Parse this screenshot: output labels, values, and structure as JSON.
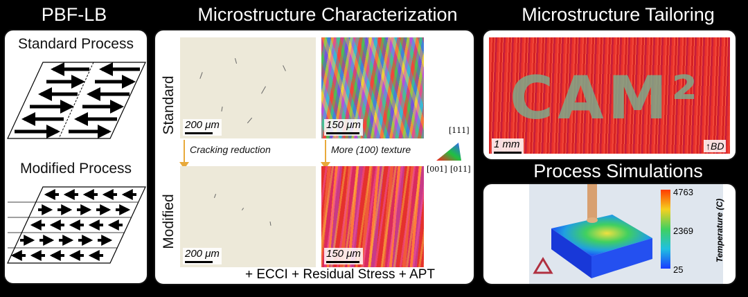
{
  "titles": {
    "pbf": "PBF-LB",
    "micro": "Microstructure Characterization",
    "tailoring": "Microstructure Tailoring",
    "simulations": "Process Simulations"
  },
  "pbf_panel": {
    "standard_label": "Standard Process",
    "modified_label": "Modified Process"
  },
  "micro_panel": {
    "row_standard": "Standard",
    "row_modified": "Modified",
    "scale_opt_std": "200 μm",
    "scale_ebsd_std": "150 μm",
    "scale_opt_mod": "200 μm",
    "scale_ebsd_mod": "150 μm",
    "note_cracking": "Cracking reduction",
    "note_texture": "More (100) texture",
    "ipf_top": "[111]",
    "ipf_left": "[001]",
    "ipf_right": "[011]",
    "footer": "+ ECCI + Residual Stress + APT"
  },
  "tailoring_panel": {
    "word": "CAM²",
    "scale": "1 mm",
    "bd": "↑BD"
  },
  "simulation_panel": {
    "legend_title": "Temperature (C)",
    "legend_max": "4763",
    "legend_mid": "2369",
    "legend_min": "25"
  },
  "colors": {
    "arrow_marker": "#e8a93a",
    "legend_top": "#ff3b00",
    "legend_bottom": "#1a3cff"
  }
}
